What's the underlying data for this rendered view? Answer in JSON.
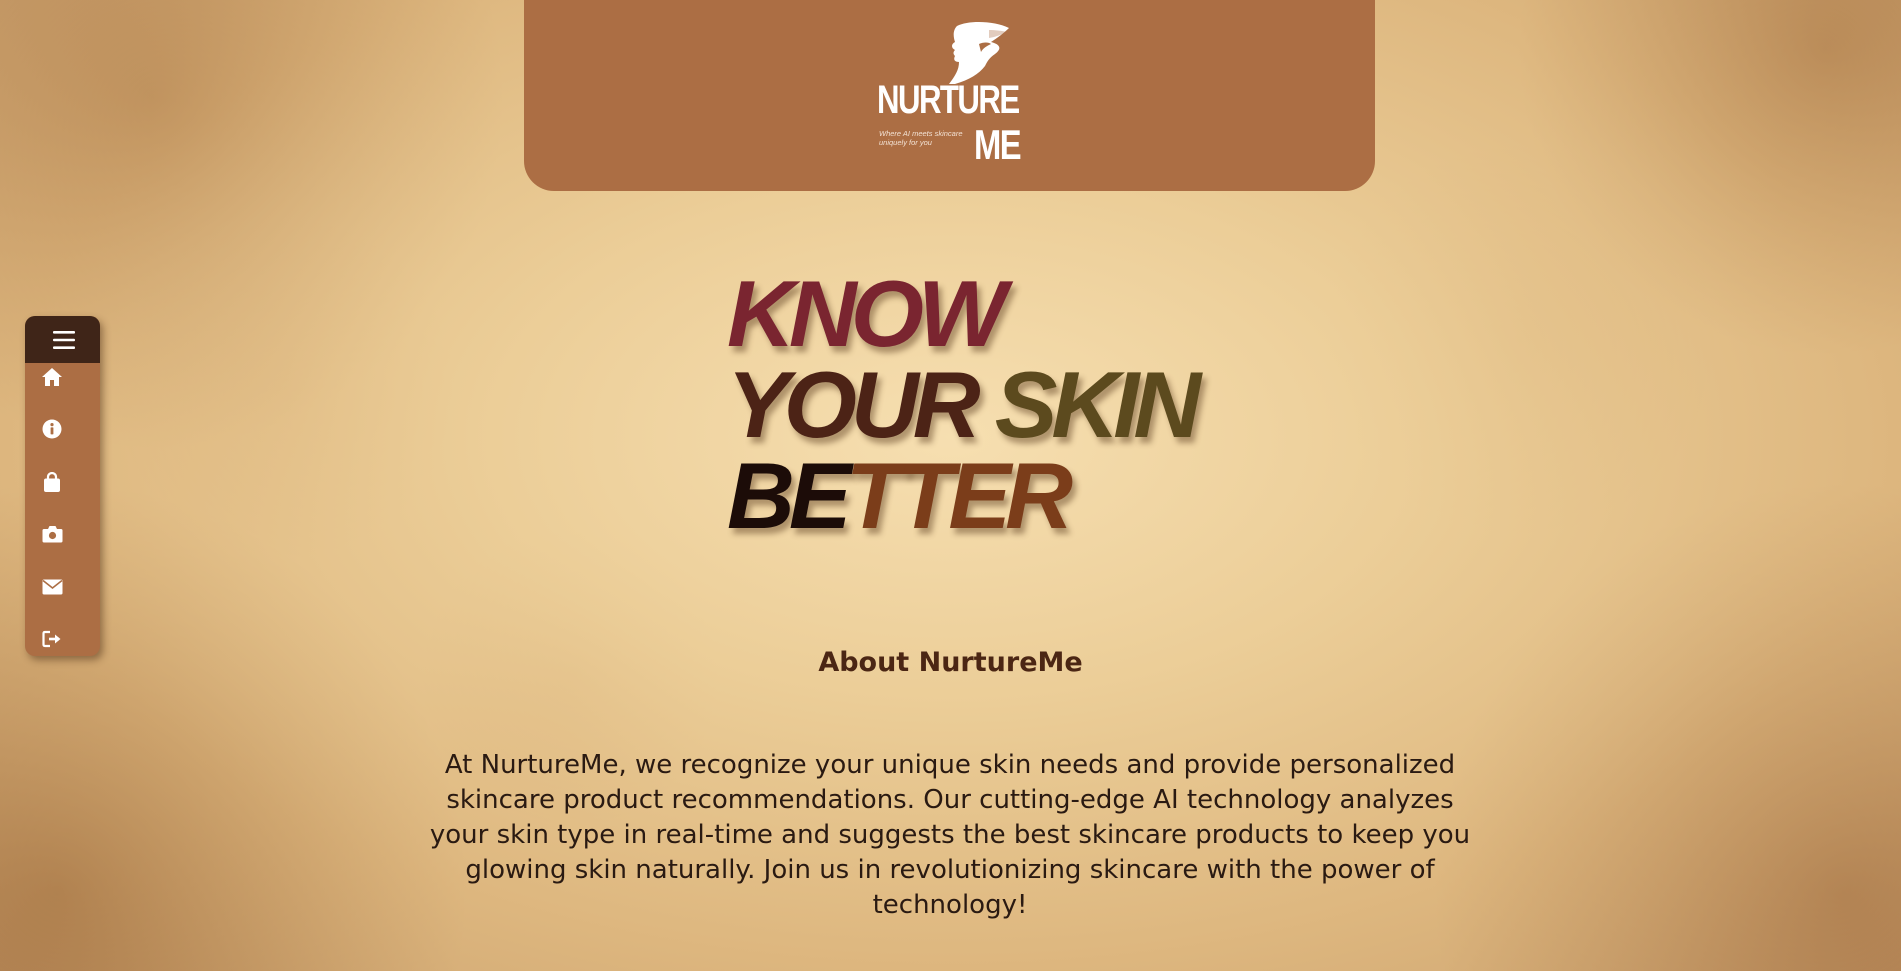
{
  "header": {
    "logo": {
      "title_line1": "NURTURE",
      "title_line2": "ME",
      "tagline": "Where AI meets skincare uniquely for you",
      "icon": "woman-profile-logo-icon"
    }
  },
  "sidebar": {
    "menu_icon": "hamburger-menu-icon",
    "items": [
      {
        "icon": "home-icon"
      },
      {
        "icon": "info-icon"
      },
      {
        "icon": "shopping-bag-icon"
      },
      {
        "icon": "camera-icon"
      },
      {
        "icon": "envelope-icon"
      },
      {
        "icon": "logout-icon"
      }
    ]
  },
  "hero": {
    "line1": "KNOW",
    "line2_a": "YOUR ",
    "line2_b": "SKIN",
    "line3_a": "BE",
    "line3_b": "TTER"
  },
  "about": {
    "title": "About NurtureMe",
    "text": "At NurtureMe, we recognize your unique skin needs and provide personalized skincare product recommendations. Our cutting-edge AI technology analyzes your skin type in real-time and suggests the best skincare products to keep you glowing skin naturally. Join us in revolutionizing skincare with the power of technology!"
  },
  "colors": {
    "header_bg": "#ac6e44",
    "sidebar_bg": "#ac6e44",
    "sidebar_top_bg": "#3f2518",
    "about_title": "#4b2614",
    "body_text": "#2a1a12"
  }
}
